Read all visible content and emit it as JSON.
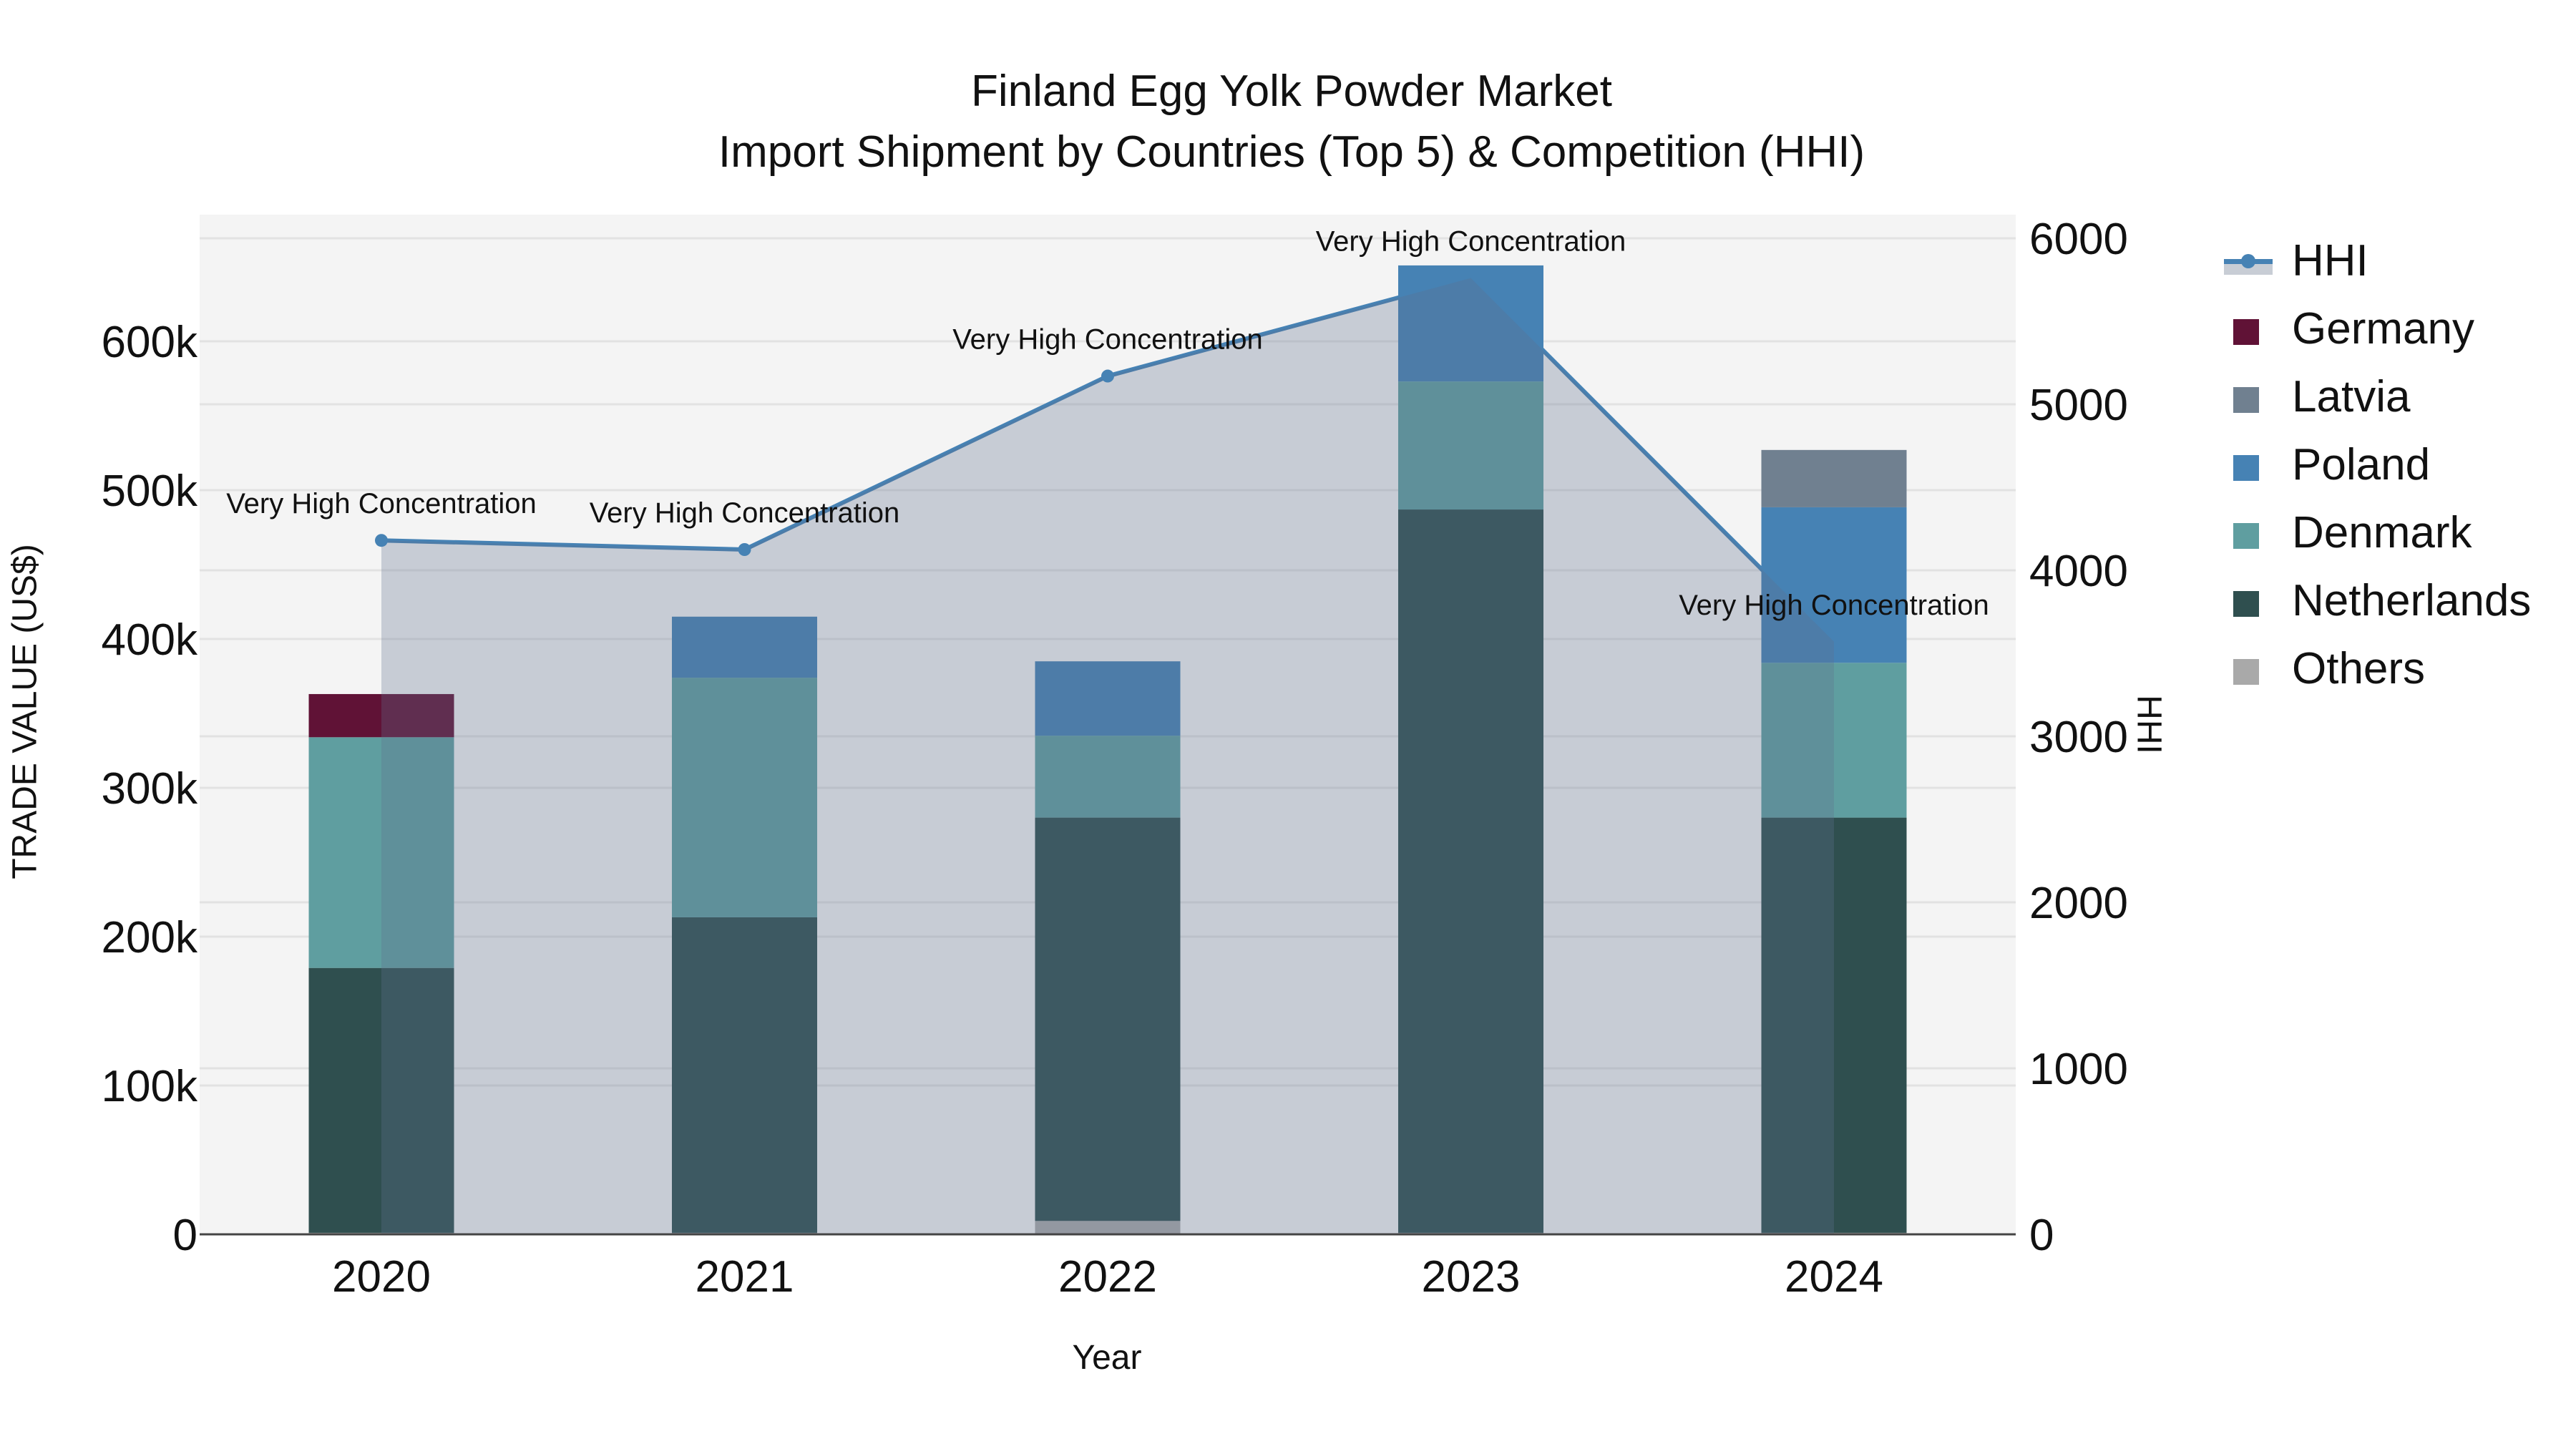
{
  "title": {
    "line1": "Finland Egg Yolk Powder Market",
    "line2": "Import Shipment by Countries (Top 5) & Competition (HHI)"
  },
  "axes": {
    "x_title": "Year",
    "y_left_title": "TRADE VALUE (US$)",
    "y_right_title": "HHI"
  },
  "legend": {
    "items": [
      {
        "label": "HHI",
        "type": "line",
        "color": "#4682B4"
      },
      {
        "label": "Germany",
        "type": "bar",
        "color": "#601236"
      },
      {
        "label": "Latvia",
        "type": "bar",
        "color": "#708090"
      },
      {
        "label": "Poland",
        "type": "bar",
        "color": "#4682B4"
      },
      {
        "label": "Denmark",
        "type": "bar",
        "color": "#5F9EA0"
      },
      {
        "label": "Netherlands",
        "type": "bar",
        "color": "#2F4F4F"
      },
      {
        "label": "Others",
        "type": "bar",
        "color": "#A9A9A9"
      }
    ]
  },
  "chart_data": {
    "type": "bar",
    "stacked": true,
    "title": "Finland Egg Yolk Powder Market\nImport Shipment by Countries (Top 5) & Competition (HHI)",
    "xlabel": "Year",
    "ylabel": "TRADE VALUE (US$)",
    "y2label": "HHI",
    "categories": [
      "2020",
      "2021",
      "2022",
      "2023",
      "2024"
    ],
    "ylim": [
      0,
      680000
    ],
    "y_ticks": [
      0,
      100000,
      200000,
      300000,
      400000,
      500000,
      600000
    ],
    "y_tick_labels": [
      "0",
      "100k",
      "200k",
      "300k",
      "400k",
      "500k",
      "600k"
    ],
    "y2lim": [
      0,
      6140
    ],
    "y2_ticks": [
      0,
      1000,
      2000,
      3000,
      4000,
      5000,
      6000
    ],
    "y2_tick_labels": [
      "0",
      "1000",
      "2000",
      "3000",
      "4000",
      "5000",
      "6000"
    ],
    "grid": true,
    "legend_position": "right",
    "series": [
      {
        "name": "Others",
        "color": "#A9A9A9",
        "values": [
          1000,
          1000,
          9000,
          1000,
          1000
        ]
      },
      {
        "name": "Netherlands",
        "color": "#2F4F4F",
        "values": [
          178000,
          212000,
          271000,
          486000,
          279000
        ]
      },
      {
        "name": "Denmark",
        "color": "#5F9EA0",
        "values": [
          155000,
          161000,
          55000,
          86000,
          104000
        ]
      },
      {
        "name": "Poland",
        "color": "#4682B4",
        "values": [
          0,
          41000,
          50000,
          78000,
          104500
        ]
      },
      {
        "name": "Latvia",
        "color": "#708090",
        "values": [
          0,
          0,
          0,
          0,
          38500
        ]
      },
      {
        "name": "Germany",
        "color": "#601236",
        "values": [
          29000,
          0,
          0,
          0,
          0
        ]
      }
    ],
    "line_series": {
      "name": "HHI",
      "axis": "right",
      "color": "#4682B4",
      "fill": "tozeroy",
      "values": [
        4180,
        4125,
        5170,
        5760,
        3570
      ],
      "annotations": [
        "Very High Concentration",
        "Very High Concentration",
        "Very High Concentration",
        "Very High Concentration",
        "Very High Concentration"
      ]
    }
  }
}
